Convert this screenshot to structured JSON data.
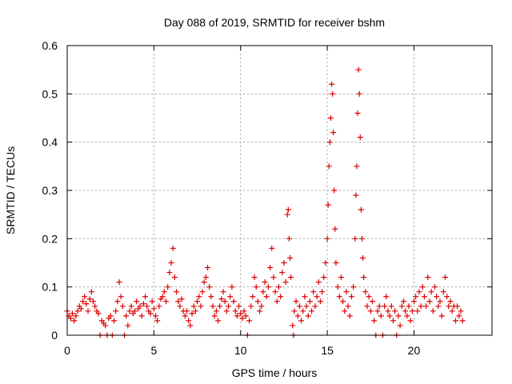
{
  "chart_data": {
    "type": "scatter",
    "title": "Day 088 of 2019, SRMTID for receiver bshm",
    "xlabel": "GPS time / hours",
    "ylabel": "SRMTID / TECUs",
    "xlim": [
      0,
      24.5
    ],
    "ylim": [
      0,
      0.6
    ],
    "x_ticks": [
      0,
      5,
      10,
      15,
      20
    ],
    "y_ticks": [
      0,
      0.1,
      0.2,
      0.3,
      0.4,
      0.5,
      0.6
    ],
    "x_tick_labels": [
      "0",
      "5",
      "10",
      "15",
      "20"
    ],
    "y_tick_labels": [
      "0",
      "0.1",
      "0.2",
      "0.3",
      "0.4",
      "0.5",
      "0.6"
    ],
    "grid": true,
    "marker": "+",
    "marker_color": "#dd0000",
    "series": [
      {
        "name": "bshm",
        "points": [
          [
            0.0,
            0.05
          ],
          [
            0.1,
            0.04
          ],
          [
            0.2,
            0.035
          ],
          [
            0.3,
            0.045
          ],
          [
            0.4,
            0.03
          ],
          [
            0.5,
            0.04
          ],
          [
            0.6,
            0.05
          ],
          [
            0.7,
            0.06
          ],
          [
            0.8,
            0.055
          ],
          [
            0.9,
            0.07
          ],
          [
            1.0,
            0.08
          ],
          [
            1.1,
            0.065
          ],
          [
            1.2,
            0.05
          ],
          [
            1.3,
            0.075
          ],
          [
            1.4,
            0.09
          ],
          [
            1.5,
            0.07
          ],
          [
            1.6,
            0.06
          ],
          [
            1.7,
            0.05
          ],
          [
            1.8,
            0.045
          ],
          [
            1.9,
            0.0
          ],
          [
            2.0,
            0.03
          ],
          [
            2.1,
            0.025
          ],
          [
            2.2,
            0.02
          ],
          [
            2.3,
            0.0
          ],
          [
            2.4,
            0.035
          ],
          [
            2.5,
            0.04
          ],
          [
            2.6,
            0.0
          ],
          [
            2.7,
            0.03
          ],
          [
            2.8,
            0.05
          ],
          [
            2.9,
            0.07
          ],
          [
            3.0,
            0.11
          ],
          [
            3.1,
            0.08
          ],
          [
            3.2,
            0.06
          ],
          [
            3.3,
            0.0
          ],
          [
            3.4,
            0.04
          ],
          [
            3.5,
            0.02
          ],
          [
            3.6,
            0.05
          ],
          [
            3.7,
            0.06
          ],
          [
            3.8,
            0.045
          ],
          [
            3.9,
            0.05
          ],
          [
            4.0,
            0.07
          ],
          [
            4.1,
            0.055
          ],
          [
            4.2,
            0.06
          ],
          [
            4.3,
            0.04
          ],
          [
            4.4,
            0.065
          ],
          [
            4.5,
            0.08
          ],
          [
            4.6,
            0.06
          ],
          [
            4.7,
            0.05
          ],
          [
            4.8,
            0.045
          ],
          [
            4.9,
            0.07
          ],
          [
            5.0,
            0.055
          ],
          [
            5.1,
            0.04
          ],
          [
            5.2,
            0.03
          ],
          [
            5.3,
            0.06
          ],
          [
            5.4,
            0.075
          ],
          [
            5.5,
            0.08
          ],
          [
            5.6,
            0.09
          ],
          [
            5.7,
            0.07
          ],
          [
            5.8,
            0.1
          ],
          [
            5.9,
            0.13
          ],
          [
            6.0,
            0.15
          ],
          [
            6.1,
            0.18
          ],
          [
            6.2,
            0.12
          ],
          [
            6.3,
            0.09
          ],
          [
            6.4,
            0.07
          ],
          [
            6.5,
            0.06
          ],
          [
            6.6,
            0.075
          ],
          [
            6.7,
            0.05
          ],
          [
            6.8,
            0.04
          ],
          [
            6.9,
            0.05
          ],
          [
            7.0,
            0.03
          ],
          [
            7.1,
            0.02
          ],
          [
            7.2,
            0.045
          ],
          [
            7.3,
            0.06
          ],
          [
            7.4,
            0.05
          ],
          [
            7.5,
            0.07
          ],
          [
            7.6,
            0.08
          ],
          [
            7.7,
            0.06
          ],
          [
            7.8,
            0.09
          ],
          [
            7.9,
            0.11
          ],
          [
            8.0,
            0.12
          ],
          [
            8.1,
            0.14
          ],
          [
            8.2,
            0.1
          ],
          [
            8.3,
            0.08
          ],
          [
            8.4,
            0.06
          ],
          [
            8.5,
            0.04
          ],
          [
            8.6,
            0.05
          ],
          [
            8.7,
            0.03
          ],
          [
            8.8,
            0.06
          ],
          [
            8.9,
            0.075
          ],
          [
            9.0,
            0.09
          ],
          [
            9.1,
            0.07
          ],
          [
            9.2,
            0.05
          ],
          [
            9.3,
            0.06
          ],
          [
            9.4,
            0.08
          ],
          [
            9.5,
            0.1
          ],
          [
            9.6,
            0.07
          ],
          [
            9.7,
            0.05
          ],
          [
            9.8,
            0.04
          ],
          [
            9.9,
            0.06
          ],
          [
            10.0,
            0.045
          ],
          [
            10.1,
            0.035
          ],
          [
            10.2,
            0.05
          ],
          [
            10.3,
            0.04
          ],
          [
            10.4,
            0.0
          ],
          [
            10.5,
            0.03
          ],
          [
            10.6,
            0.06
          ],
          [
            10.7,
            0.08
          ],
          [
            10.8,
            0.12
          ],
          [
            10.9,
            0.1
          ],
          [
            11.0,
            0.07
          ],
          [
            11.1,
            0.05
          ],
          [
            11.2,
            0.06
          ],
          [
            11.3,
            0.09
          ],
          [
            11.4,
            0.11
          ],
          [
            11.5,
            0.08
          ],
          [
            11.6,
            0.1
          ],
          [
            11.7,
            0.14
          ],
          [
            11.8,
            0.18
          ],
          [
            11.9,
            0.12
          ],
          [
            12.0,
            0.09
          ],
          [
            12.1,
            0.07
          ],
          [
            12.2,
            0.1
          ],
          [
            12.3,
            0.08
          ],
          [
            12.4,
            0.13
          ],
          [
            12.5,
            0.15
          ],
          [
            12.6,
            0.11
          ],
          [
            12.7,
            0.25
          ],
          [
            12.75,
            0.26
          ],
          [
            12.8,
            0.2
          ],
          [
            12.85,
            0.16
          ],
          [
            12.9,
            0.12
          ],
          [
            13.0,
            0.02
          ],
          [
            13.05,
            0.0
          ],
          [
            13.1,
            0.05
          ],
          [
            13.2,
            0.07
          ],
          [
            13.3,
            0.04
          ],
          [
            13.4,
            0.06
          ],
          [
            13.5,
            0.03
          ],
          [
            13.6,
            0.05
          ],
          [
            13.7,
            0.08
          ],
          [
            13.8,
            0.06
          ],
          [
            13.9,
            0.04
          ],
          [
            14.0,
            0.07
          ],
          [
            14.1,
            0.05
          ],
          [
            14.2,
            0.09
          ],
          [
            14.3,
            0.06
          ],
          [
            14.4,
            0.08
          ],
          [
            14.5,
            0.11
          ],
          [
            14.6,
            0.07
          ],
          [
            14.7,
            0.09
          ],
          [
            14.8,
            0.12
          ],
          [
            14.9,
            0.15
          ],
          [
            15.0,
            0.2
          ],
          [
            15.05,
            0.27
          ],
          [
            15.1,
            0.35
          ],
          [
            15.15,
            0.4
          ],
          [
            15.2,
            0.45
          ],
          [
            15.25,
            0.52
          ],
          [
            15.3,
            0.5
          ],
          [
            15.35,
            0.42
          ],
          [
            15.4,
            0.3
          ],
          [
            15.45,
            0.22
          ],
          [
            15.5,
            0.15
          ],
          [
            15.6,
            0.1
          ],
          [
            15.7,
            0.08
          ],
          [
            15.8,
            0.12
          ],
          [
            15.9,
            0.07
          ],
          [
            16.0,
            0.05
          ],
          [
            16.1,
            0.09
          ],
          [
            16.2,
            0.06
          ],
          [
            16.3,
            0.04
          ],
          [
            16.4,
            0.08
          ],
          [
            16.5,
            0.1
          ],
          [
            16.6,
            0.2
          ],
          [
            16.65,
            0.29
          ],
          [
            16.7,
            0.35
          ],
          [
            16.75,
            0.46
          ],
          [
            16.8,
            0.55
          ],
          [
            16.85,
            0.5
          ],
          [
            16.9,
            0.41
          ],
          [
            16.95,
            0.26
          ],
          [
            17.0,
            0.2
          ],
          [
            17.05,
            0.16
          ],
          [
            17.1,
            0.12
          ],
          [
            17.2,
            0.09
          ],
          [
            17.3,
            0.06
          ],
          [
            17.4,
            0.08
          ],
          [
            17.5,
            0.05
          ],
          [
            17.6,
            0.07
          ],
          [
            17.7,
            0.03
          ],
          [
            17.8,
            0.0
          ],
          [
            17.9,
            0.05
          ],
          [
            18.0,
            0.06
          ],
          [
            18.1,
            0.04
          ],
          [
            18.2,
            0.0
          ],
          [
            18.3,
            0.06
          ],
          [
            18.4,
            0.08
          ],
          [
            18.5,
            0.05
          ],
          [
            18.6,
            0.04
          ],
          [
            18.7,
            0.06
          ],
          [
            18.8,
            0.03
          ],
          [
            18.9,
            0.05
          ],
          [
            19.0,
            0.0
          ],
          [
            19.1,
            0.04
          ],
          [
            19.2,
            0.02
          ],
          [
            19.3,
            0.06
          ],
          [
            19.4,
            0.07
          ],
          [
            19.5,
            0.05
          ],
          [
            19.6,
            0.04
          ],
          [
            19.7,
            0.06
          ],
          [
            19.8,
            0.03
          ],
          [
            19.9,
            0.05
          ],
          [
            20.0,
            0.07
          ],
          [
            20.1,
            0.08
          ],
          [
            20.2,
            0.05
          ],
          [
            20.3,
            0.09
          ],
          [
            20.4,
            0.06
          ],
          [
            20.5,
            0.1
          ],
          [
            20.6,
            0.08
          ],
          [
            20.7,
            0.06
          ],
          [
            20.8,
            0.12
          ],
          [
            20.9,
            0.07
          ],
          [
            21.0,
            0.09
          ],
          [
            21.1,
            0.05
          ],
          [
            21.2,
            0.1
          ],
          [
            21.3,
            0.08
          ],
          [
            21.4,
            0.06
          ],
          [
            21.5,
            0.07
          ],
          [
            21.6,
            0.04
          ],
          [
            21.7,
            0.09
          ],
          [
            21.8,
            0.12
          ],
          [
            21.9,
            0.08
          ],
          [
            22.0,
            0.06
          ],
          [
            22.1,
            0.07
          ],
          [
            22.2,
            0.05
          ],
          [
            22.3,
            0.06
          ],
          [
            22.4,
            0.03
          ],
          [
            22.5,
            0.06
          ],
          [
            22.6,
            0.04
          ],
          [
            22.7,
            0.05
          ],
          [
            22.8,
            0.03
          ]
        ]
      }
    ]
  }
}
